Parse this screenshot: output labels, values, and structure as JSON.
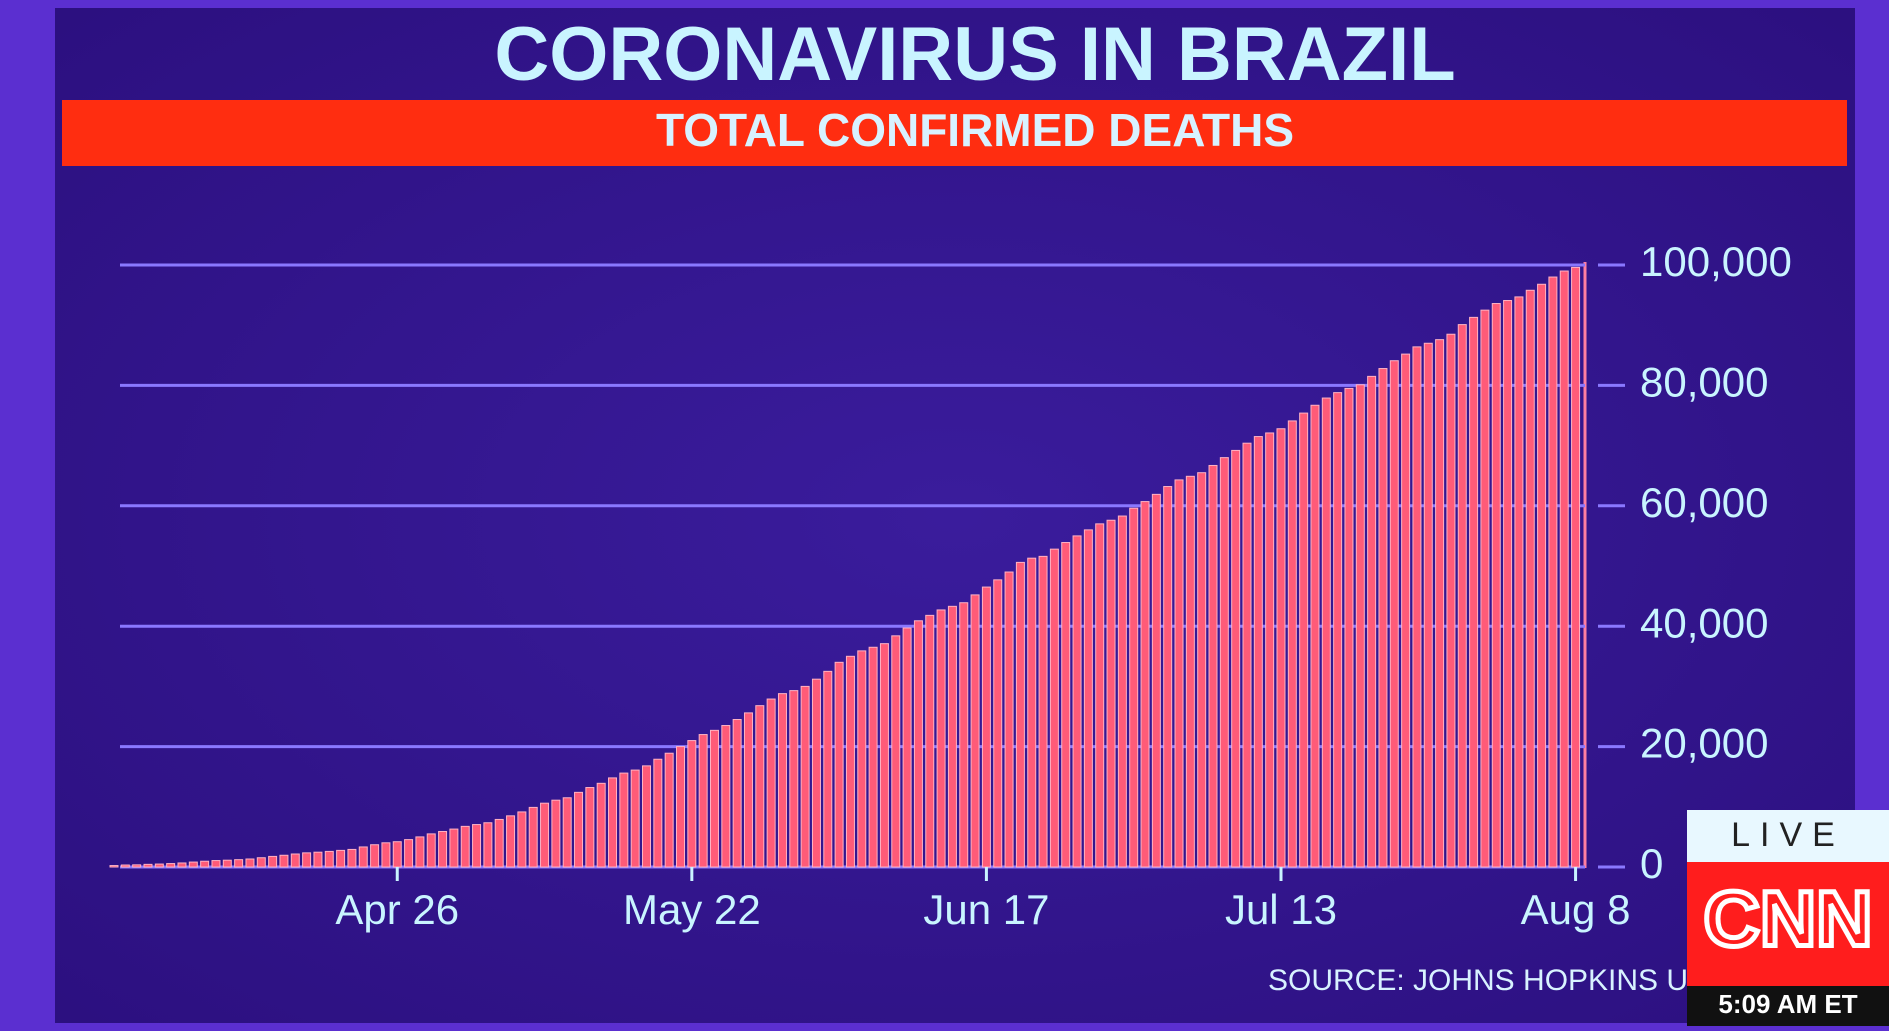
{
  "chart_data": {
    "type": "bar",
    "title": "CORONAVIRUS IN BRAZIL",
    "subtitle": "TOTAL CONFIRMED DEATHS",
    "source": "SOURCE: JOHNS HOPKINS U",
    "categories": [
      null,
      null,
      null,
      null,
      null,
      null,
      null,
      null,
      null,
      null,
      null,
      null,
      null,
      null,
      null,
      null,
      null,
      null,
      null,
      null,
      null,
      null,
      null,
      null,
      null,
      "Apr 26",
      null,
      null,
      null,
      null,
      null,
      null,
      null,
      null,
      null,
      null,
      null,
      null,
      null,
      null,
      null,
      null,
      null,
      null,
      null,
      null,
      null,
      null,
      null,
      null,
      null,
      "May 22",
      null,
      null,
      null,
      null,
      null,
      null,
      null,
      null,
      null,
      null,
      null,
      null,
      null,
      null,
      null,
      null,
      null,
      null,
      null,
      null,
      null,
      null,
      null,
      null,
      null,
      "Jun 17",
      null,
      null,
      null,
      null,
      null,
      null,
      null,
      null,
      null,
      null,
      null,
      null,
      null,
      null,
      null,
      null,
      null,
      null,
      null,
      null,
      null,
      null,
      null,
      null,
      null,
      "Jul 13",
      null,
      null,
      null,
      null,
      null,
      null,
      null,
      null,
      null,
      null,
      null,
      null,
      null,
      null,
      null,
      null,
      null,
      null,
      null,
      null,
      null,
      null,
      null,
      null,
      null,
      "Aug 8"
    ],
    "values": [
      240,
      330,
      360,
      440,
      490,
      570,
      670,
      820,
      960,
      1070,
      1130,
      1220,
      1330,
      1540,
      1760,
      1950,
      2160,
      2350,
      2460,
      2590,
      2760,
      2920,
      3330,
      3700,
      4020,
      4200,
      4550,
      5000,
      5500,
      5900,
      6300,
      6750,
      7050,
      7350,
      7900,
      8500,
      9150,
      9900,
      10600,
      11100,
      11500,
      12400,
      13200,
      13900,
      14800,
      15600,
      16100,
      16800,
      17900,
      18900,
      20000,
      21000,
      22000,
      22700,
      23500,
      24500,
      25600,
      26800,
      27900,
      28800,
      29300,
      30000,
      31200,
      32500,
      34000,
      35000,
      35900,
      36500,
      37100,
      38400,
      39700,
      40900,
      41800,
      42700,
      43300,
      43900,
      45200,
      46500,
      47700,
      49000,
      50600,
      51300,
      51600,
      52800,
      53900,
      55000,
      56000,
      57000,
      57600,
      58300,
      59600,
      60700,
      61900,
      63200,
      64300,
      64900,
      65500,
      66700,
      68000,
      69200,
      70400,
      71500,
      72100,
      72800,
      74100,
      75400,
      76700,
      77900,
      78800,
      79500,
      80100,
      81500,
      82800,
      84100,
      85200,
      86400,
      87000,
      87600,
      88500,
      90100,
      91300,
      92500,
      93600,
      94100,
      94700,
      95800,
      96800,
      98000,
      99000,
      99600
    ],
    "color": "#ff5b78",
    "ylim": [
      0,
      100000
    ],
    "yticks": [
      0,
      {
        "value": 20000,
        "label": "20,000"
      },
      {
        "value": 40000,
        "label": "40,000"
      },
      {
        "value": 60000,
        "label": "60,000"
      },
      {
        "value": 80000,
        "label": "80,000"
      },
      {
        "value": 100000,
        "label": "100,000"
      }
    ],
    "grid": true
  },
  "overlay": {
    "live": "LIVE",
    "logo": "CNN",
    "time": "5:09 AM ET"
  }
}
